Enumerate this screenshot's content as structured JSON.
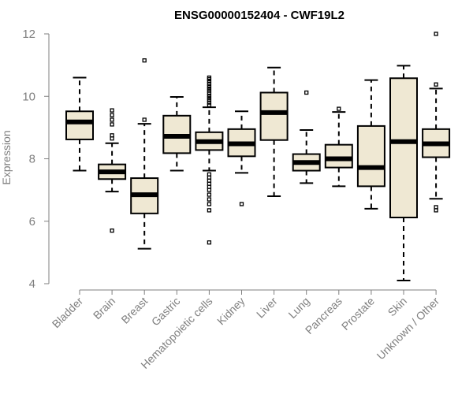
{
  "chart_data": {
    "type": "boxplot",
    "title": "ENSG00000152404 - CWF19L2",
    "xlabel": "",
    "ylabel": "Expression",
    "ylim": [
      4,
      12
    ],
    "yticks": [
      4,
      6,
      8,
      10,
      12
    ],
    "grid": false,
    "categories": [
      "Bladder",
      "Brain",
      "Breast",
      "Gastric",
      "Hematopoietic cells",
      "Kidney",
      "Liver",
      "Lung",
      "Pancreas",
      "Prostate",
      "Skin",
      "Unknown / Other"
    ],
    "colors": {
      "box_fill": "#efe8d3",
      "stroke": "#000000",
      "axis": "#7f7f7f"
    },
    "boxes": [
      {
        "name": "Bladder",
        "whisker_low": 7.62,
        "q1": 8.62,
        "median": 9.18,
        "q3": 9.52,
        "whisker_high": 10.6,
        "outliers": []
      },
      {
        "name": "Brain",
        "whisker_low": 6.95,
        "q1": 7.35,
        "median": 7.58,
        "q3": 7.82,
        "whisker_high": 8.5,
        "outliers": [
          5.7,
          8.65,
          8.75,
          9.1,
          9.25,
          9.4,
          9.55
        ]
      },
      {
        "name": "Breast",
        "whisker_low": 5.12,
        "q1": 6.25,
        "median": 6.85,
        "q3": 7.38,
        "whisker_high": 9.12,
        "outliers": [
          9.25,
          11.15
        ]
      },
      {
        "name": "Gastric",
        "whisker_low": 7.62,
        "q1": 8.18,
        "median": 8.72,
        "q3": 9.38,
        "whisker_high": 9.98,
        "outliers": []
      },
      {
        "name": "Hematopoietic cells",
        "whisker_low": 7.62,
        "q1": 8.28,
        "median": 8.55,
        "q3": 8.85,
        "whisker_high": 9.65,
        "outliers": [
          5.32,
          6.35,
          6.55,
          6.7,
          6.85,
          7.0,
          7.1,
          7.2,
          7.3,
          7.4,
          7.5,
          9.72,
          9.8,
          9.88,
          9.95,
          10.02,
          10.1,
          10.18,
          10.25,
          10.32,
          10.4,
          10.48,
          10.55,
          10.6
        ]
      },
      {
        "name": "Kidney",
        "whisker_low": 7.55,
        "q1": 8.08,
        "median": 8.48,
        "q3": 8.95,
        "whisker_high": 9.52,
        "outliers": [
          6.55
        ]
      },
      {
        "name": "Liver",
        "whisker_low": 6.8,
        "q1": 8.6,
        "median": 9.48,
        "q3": 10.12,
        "whisker_high": 10.92,
        "outliers": []
      },
      {
        "name": "Lung",
        "whisker_low": 7.22,
        "q1": 7.62,
        "median": 7.88,
        "q3": 8.15,
        "whisker_high": 8.92,
        "outliers": [
          10.12
        ]
      },
      {
        "name": "Pancreas",
        "whisker_low": 7.12,
        "q1": 7.72,
        "median": 8.0,
        "q3": 8.45,
        "whisker_high": 9.5,
        "outliers": [
          9.6
        ]
      },
      {
        "name": "Prostate",
        "whisker_low": 6.4,
        "q1": 7.12,
        "median": 7.72,
        "q3": 9.05,
        "whisker_high": 10.52,
        "outliers": []
      },
      {
        "name": "Skin",
        "whisker_low": 4.1,
        "q1": 6.12,
        "median": 8.55,
        "q3": 10.58,
        "whisker_high": 10.98,
        "outliers": []
      },
      {
        "name": "Unknown / Other",
        "whisker_low": 6.72,
        "q1": 8.05,
        "median": 8.48,
        "q3": 8.95,
        "whisker_high": 10.25,
        "outliers": [
          6.35,
          6.45,
          10.38,
          12.0
        ]
      }
    ]
  }
}
